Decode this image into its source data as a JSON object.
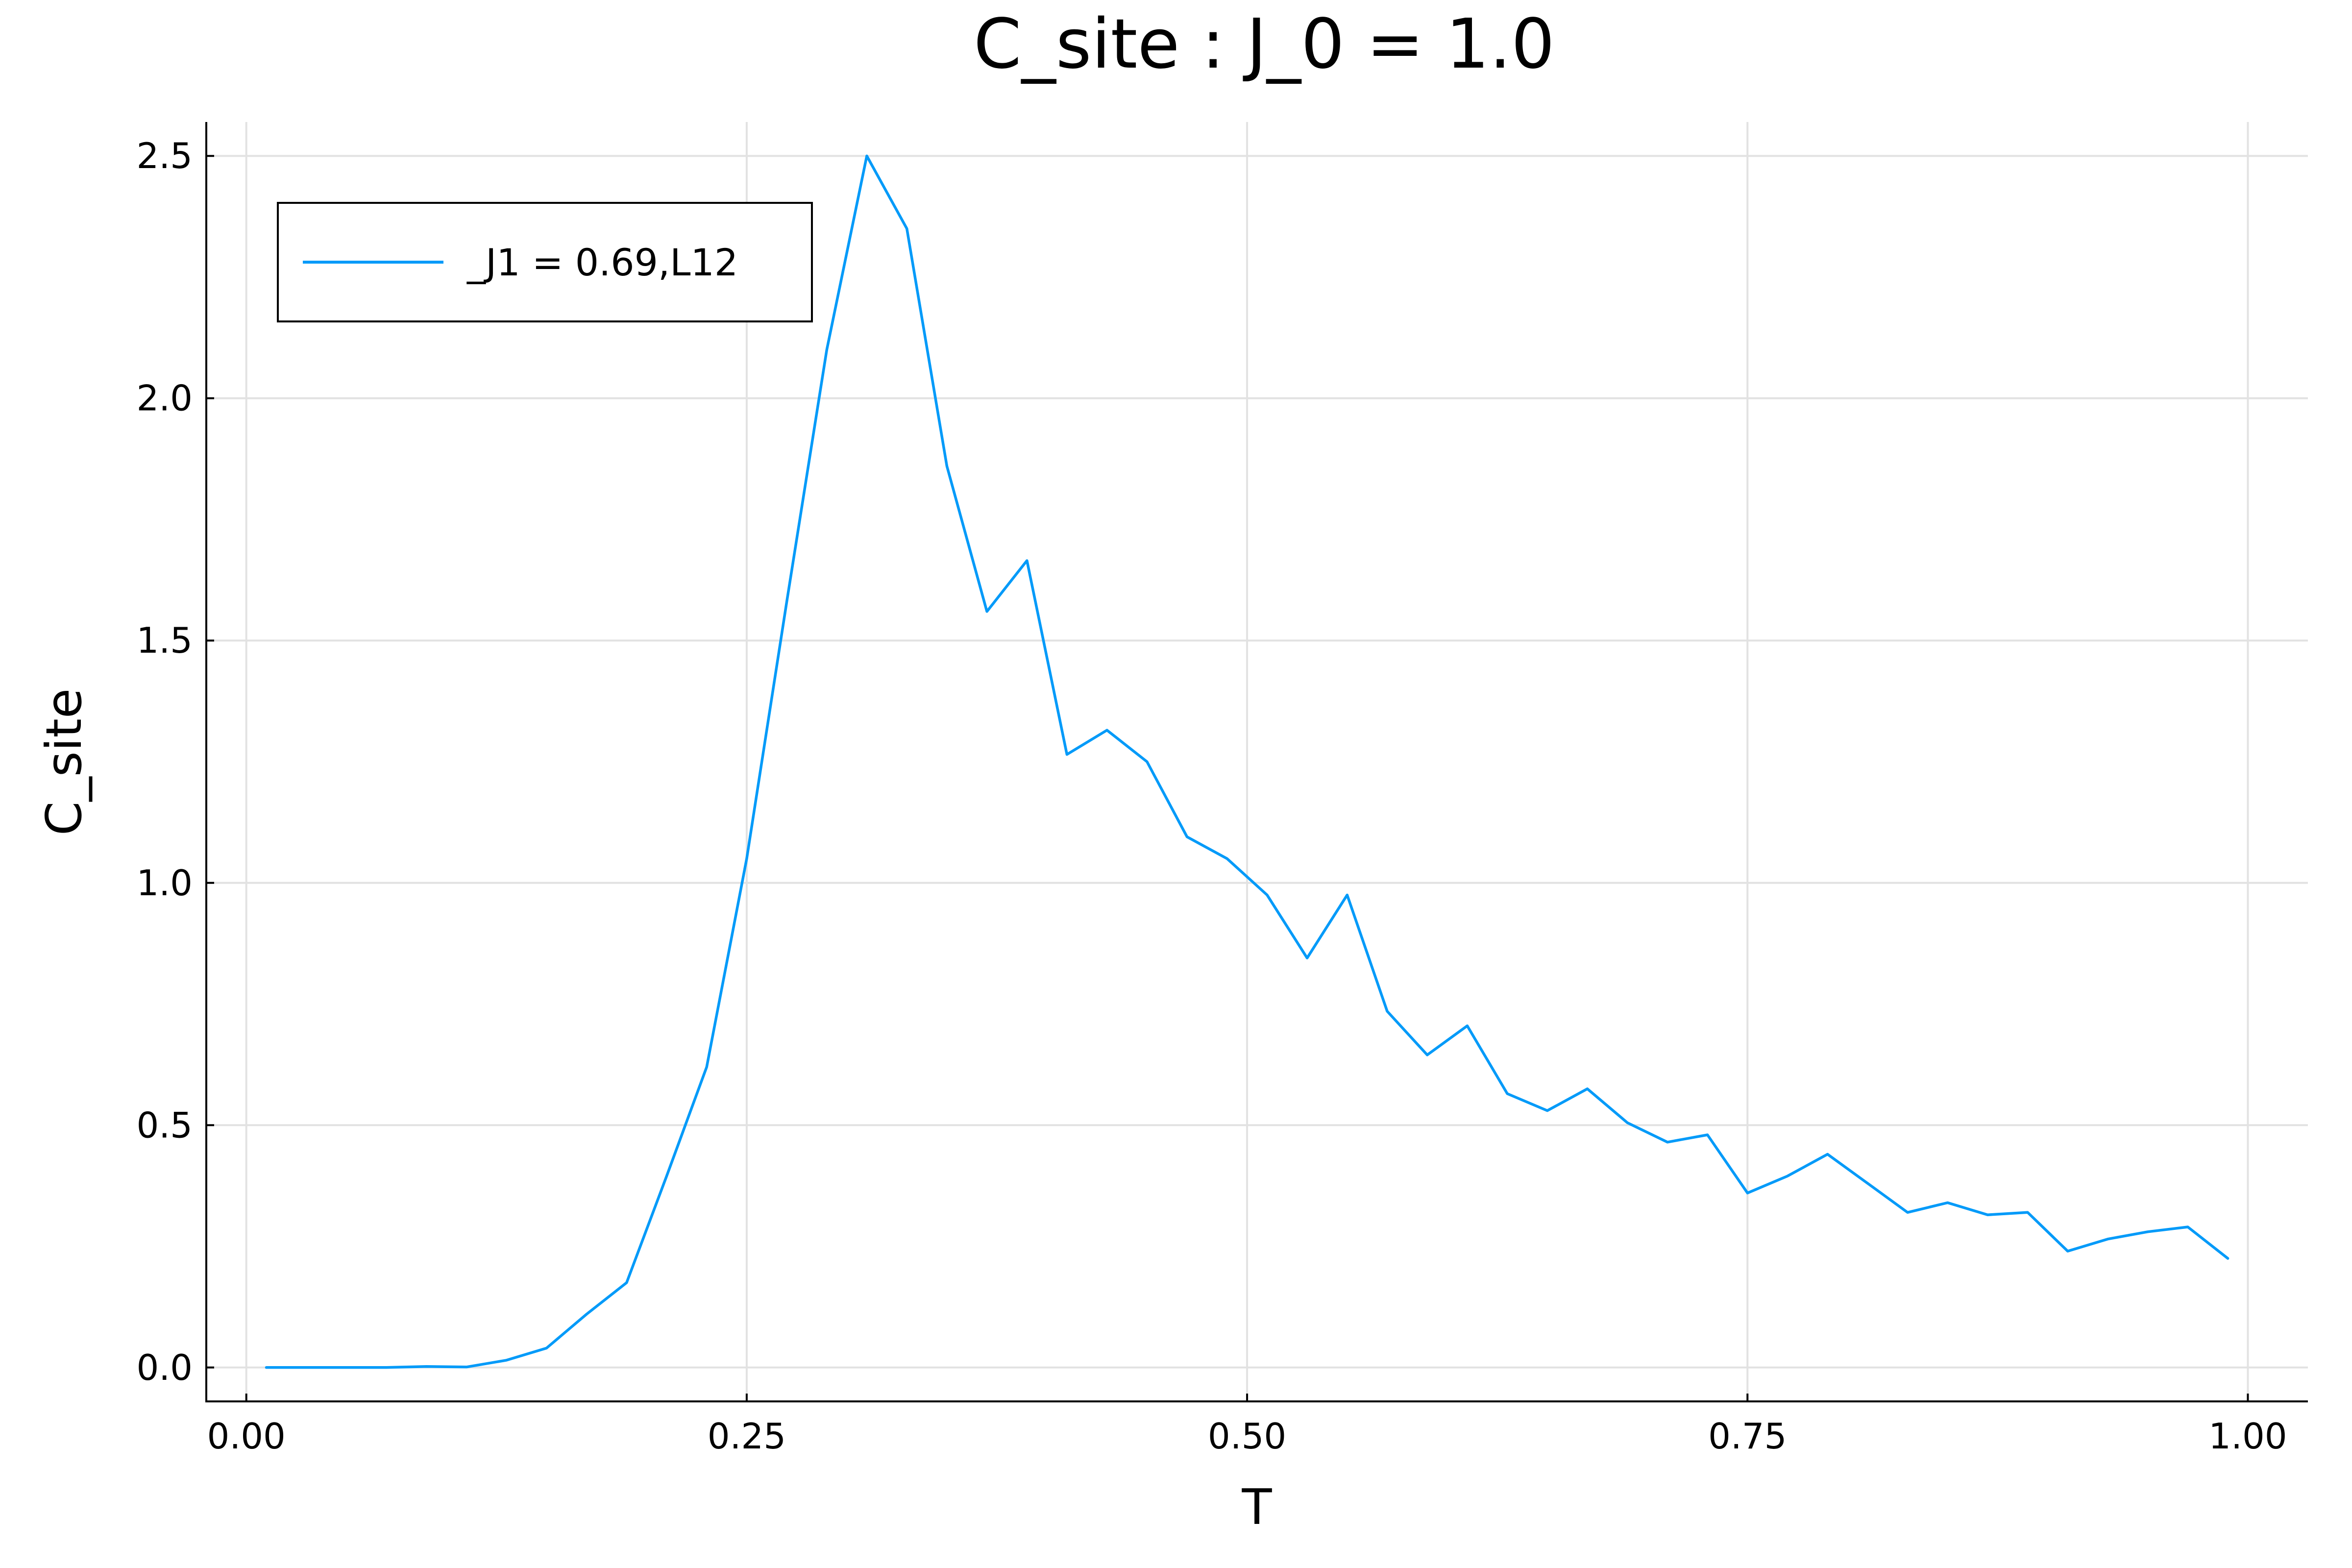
{
  "chart_data": {
    "type": "line",
    "title": "C_site : J_0 = 1.0",
    "xlabel": "T",
    "ylabel": "C_site",
    "xlim": [
      -0.02,
      1.03
    ],
    "ylim": [
      -0.07,
      2.57
    ],
    "x_ticks": [
      0.0,
      0.25,
      0.5,
      0.75,
      1.0
    ],
    "x_tick_labels": [
      "0.00",
      "0.25",
      "0.50",
      "0.75",
      "1.00"
    ],
    "y_ticks": [
      0.0,
      0.5,
      1.0,
      1.5,
      2.0,
      2.5
    ],
    "y_tick_labels": [
      "0.0",
      "0.5",
      "1.0",
      "1.5",
      "2.0",
      "2.5"
    ],
    "grid": true,
    "legend_position": "top-left",
    "series_color": "#009af9",
    "series": [
      {
        "name": "_J1 = 0.69,L12",
        "x": [
          0.01,
          0.03,
          0.05,
          0.07,
          0.09,
          0.11,
          0.13,
          0.15,
          0.17,
          0.19,
          0.21,
          0.23,
          0.25,
          0.27,
          0.29,
          0.31,
          0.33,
          0.35,
          0.37,
          0.39,
          0.41,
          0.43,
          0.45,
          0.47,
          0.49,
          0.51,
          0.53,
          0.55,
          0.57,
          0.59,
          0.61,
          0.63,
          0.65,
          0.67,
          0.69,
          0.71,
          0.73,
          0.75,
          0.77,
          0.79,
          0.81,
          0.83,
          0.85,
          0.87,
          0.89,
          0.91,
          0.93,
          0.95,
          0.97,
          0.99
        ],
        "values": [
          0.0,
          0.0,
          0.0,
          0.0,
          0.002,
          0.001,
          0.015,
          0.04,
          0.11,
          0.175,
          0.395,
          0.62,
          1.05,
          1.58,
          2.1,
          2.5,
          2.35,
          1.86,
          1.56,
          1.665,
          1.265,
          1.315,
          1.25,
          1.095,
          1.05,
          0.975,
          0.845,
          0.975,
          0.735,
          0.645,
          0.705,
          0.565,
          0.53,
          0.575,
          0.505,
          0.465,
          0.48,
          0.36,
          0.395,
          0.44,
          0.38,
          0.32,
          0.34,
          0.315,
          0.32,
          0.24,
          0.265,
          0.28,
          0.29,
          0.225
        ]
      }
    ]
  }
}
